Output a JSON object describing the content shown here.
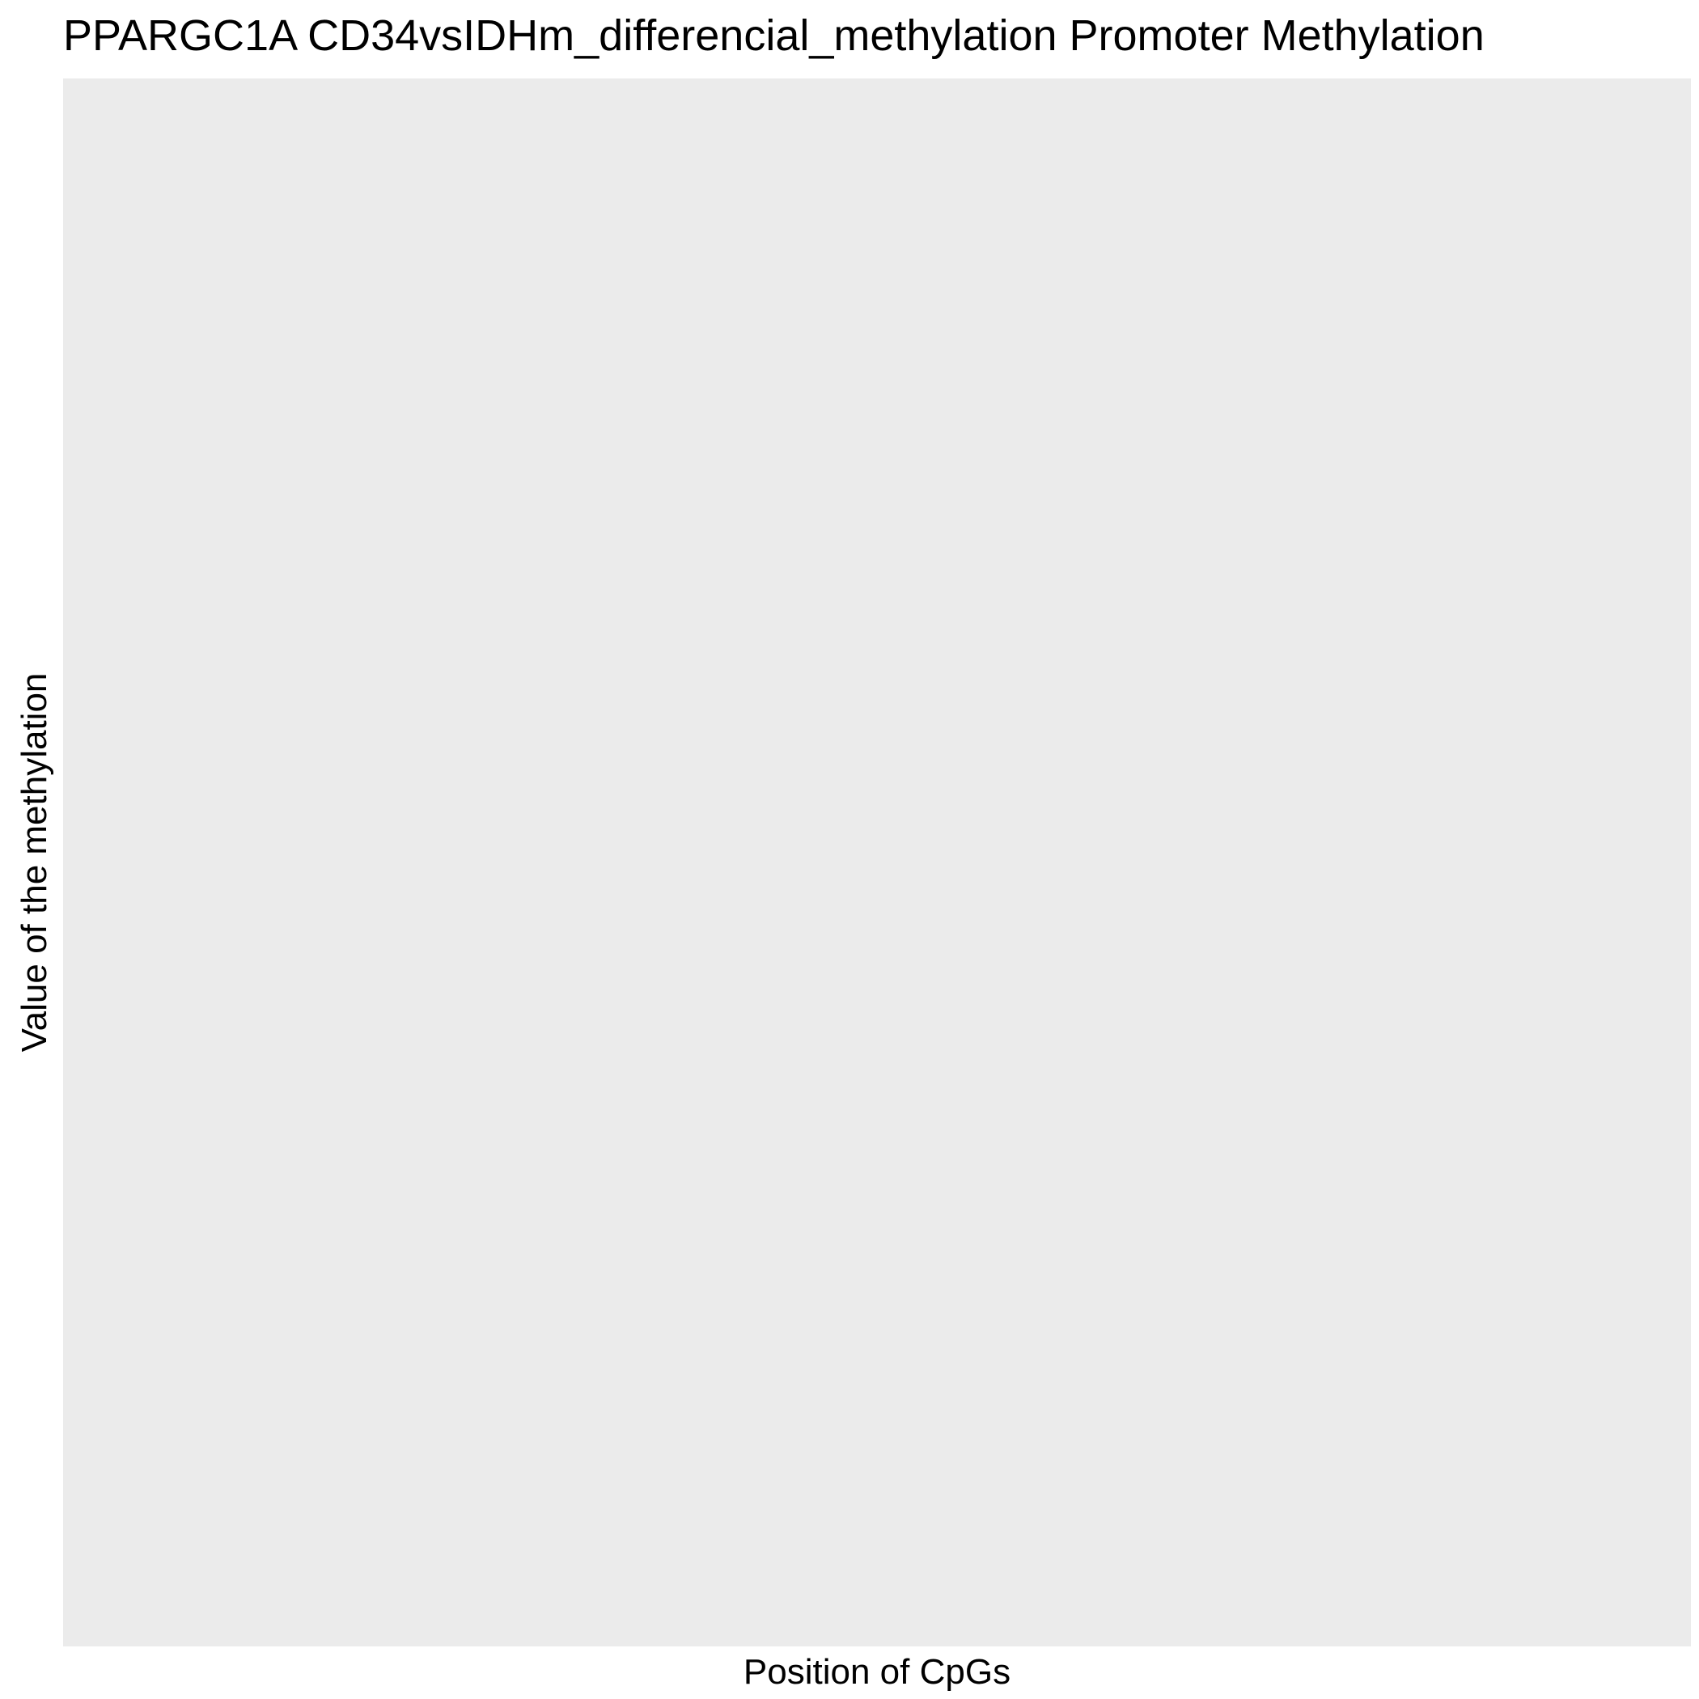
{
  "chart_data": {
    "type": "line",
    "title": "PPARGC1A CD34vsIDHm_differencial_methylation Promoter Methylation",
    "xlabel": "Position of CpGs",
    "ylabel": "Value of the methylation",
    "series": [],
    "grid": false,
    "legend": "none"
  },
  "colors": {
    "panel_background": "#ebebeb",
    "page_background": "#ffffff",
    "text": "#000000"
  }
}
